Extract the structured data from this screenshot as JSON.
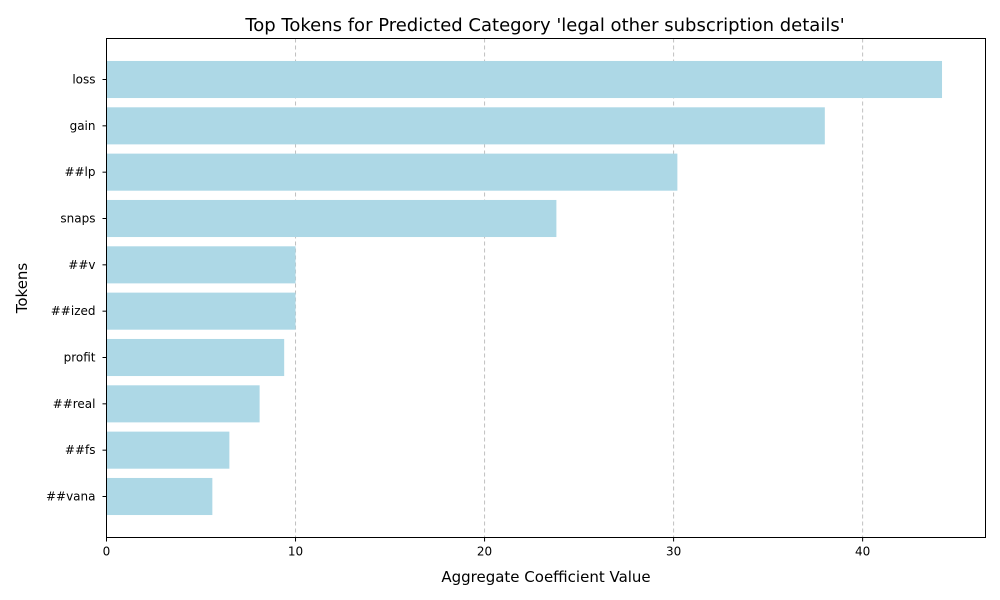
{
  "chart_data": {
    "type": "bar",
    "orientation": "horizontal",
    "title": "Top Tokens for Predicted Category 'legal other subscription details'",
    "xlabel": "Aggregate Coefficient Value",
    "ylabel": "Tokens",
    "categories": [
      "loss",
      "gain",
      "##lp",
      "snaps",
      "##v",
      "##ized",
      "profit",
      "##real",
      "##fs",
      "##vana"
    ],
    "values": [
      44.2,
      38.0,
      30.2,
      23.8,
      10.0,
      10.0,
      9.4,
      8.1,
      6.5,
      5.6
    ],
    "xlim": [
      0,
      46.5
    ],
    "xticks": [
      0,
      10,
      20,
      30,
      40
    ],
    "grid": "x-dashed",
    "bar_color": "#add8e6"
  }
}
